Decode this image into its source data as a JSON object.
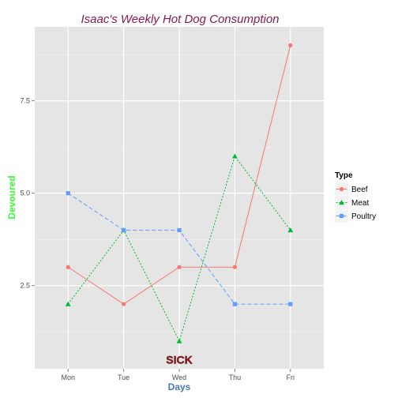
{
  "chart_data": {
    "type": "line",
    "title": "Isaac's Weekly Hot Dog Consumption",
    "xlabel": "Days",
    "ylabel": "Devoured",
    "categories": [
      "Mon",
      "Tue",
      "Wed",
      "Thu",
      "Fri"
    ],
    "ylim": [
      0.25,
      9.5
    ],
    "yticks": [
      2.5,
      5.0,
      7.5
    ],
    "ytick_labels": [
      "2.5",
      "5.0",
      "7.5"
    ],
    "grid": true,
    "legend": {
      "title": "Type",
      "position": "right"
    },
    "series": [
      {
        "name": "Beef",
        "values": [
          3,
          2,
          3,
          3,
          9
        ],
        "color": "#f8766d",
        "dash": "solid",
        "marker": "circle"
      },
      {
        "name": "Meat",
        "values": [
          2,
          4,
          1,
          6,
          4
        ],
        "color": "#00ba38",
        "dash": "dotted",
        "marker": "triangle"
      },
      {
        "name": "Poultry",
        "values": [
          5,
          4,
          4,
          2,
          2
        ],
        "color": "#619cff",
        "dash": "dashed",
        "marker": "square"
      }
    ],
    "annotation": {
      "text": "SICK",
      "x": "Wed",
      "y": 0.5,
      "color": "#8b1a1a"
    },
    "colors": {
      "title": "#8b1a4a",
      "xlabel": "#4a7bb0",
      "ylabel": "#33ff33",
      "panel": "#e5e5e5",
      "grid": "#ffffff"
    }
  }
}
